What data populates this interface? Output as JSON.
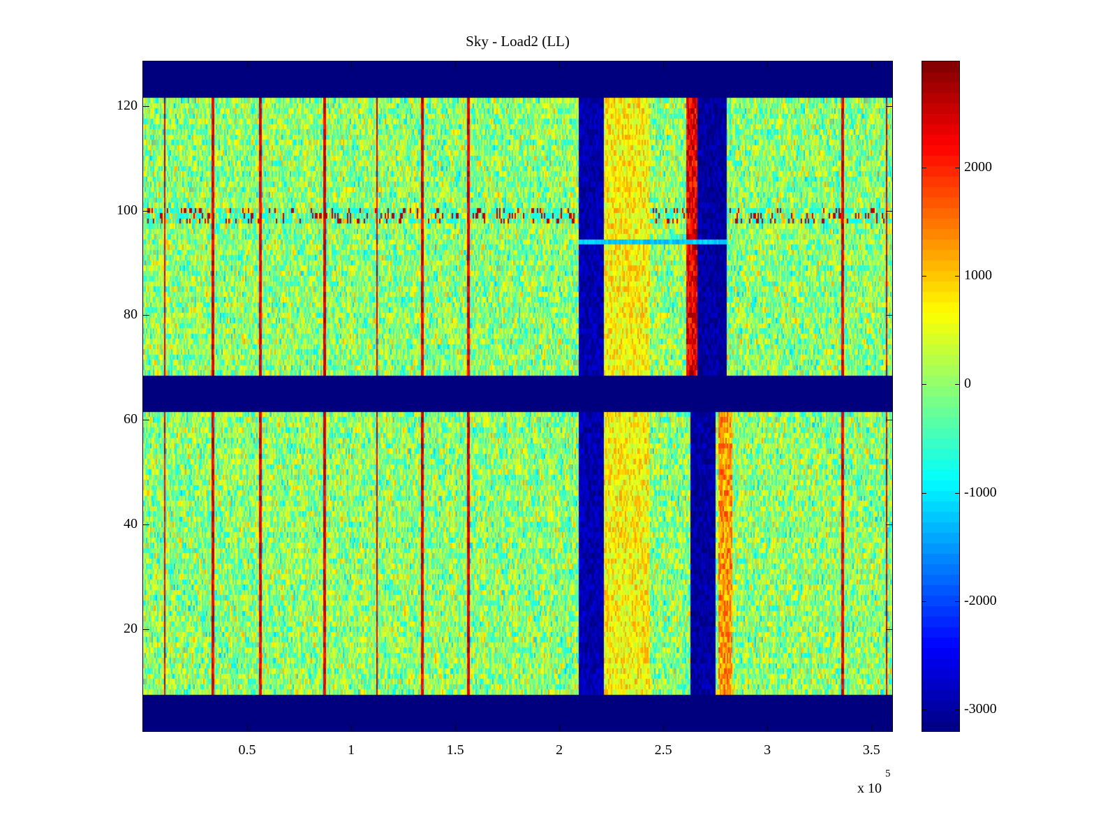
{
  "chart_data": {
    "type": "heatmap",
    "title": "Sky - Load2 (LL)",
    "xlabel": "",
    "ylabel": "",
    "x_multiplier_label": "x 10",
    "x_multiplier_exponent": "5",
    "xlim": [
      0,
      3.6
    ],
    "ylim": [
      0.5,
      128.5
    ],
    "xticks": [
      0.5,
      1,
      1.5,
      2,
      2.5,
      3,
      3.5
    ],
    "xtick_labels": [
      "0.5",
      "1",
      "1.5",
      "2",
      "2.5",
      "3",
      "3.5"
    ],
    "yticks": [
      20,
      40,
      60,
      80,
      100,
      120
    ],
    "ytick_labels": [
      "20",
      "40",
      "60",
      "80",
      "100",
      "120"
    ],
    "rows": 128,
    "colormap": "jet",
    "clim": [
      -3200,
      2980
    ],
    "colorbar": {
      "location": "right",
      "ticks": [
        2000,
        1000,
        0,
        -1000,
        -2000,
        -3000
      ],
      "tick_labels": [
        "2000",
        "1000",
        "0",
        "-1000",
        "-2000",
        "-3000"
      ]
    },
    "background_mean": 0,
    "masked_rows": [
      [
        1,
        7
      ],
      [
        62,
        68
      ],
      [
        122,
        128
      ]
    ],
    "masked_value": -3200,
    "bands": [
      {
        "x": [
          2.09,
          2.21
        ],
        "rows": [
          8,
          121
        ],
        "value": -2900
      },
      {
        "x": [
          2.21,
          2.43
        ],
        "rows": [
          8,
          121
        ],
        "value": 700
      },
      {
        "x": [
          2.61,
          2.66
        ],
        "rows": [
          69,
          121
        ],
        "value": 2300
      },
      {
        "x": [
          2.66,
          2.8
        ],
        "rows": [
          69,
          121
        ],
        "value": -3000
      },
      {
        "x": [
          2.63,
          2.75
        ],
        "rows": [
          8,
          61
        ],
        "value": -3000
      },
      {
        "x": [
          2.76,
          2.83
        ],
        "rows": [
          8,
          61
        ],
        "value": 1300
      }
    ],
    "light_rows": [
      {
        "row": 94,
        "x": [
          2.09,
          2.8
        ],
        "value": -1200
      }
    ],
    "noisy_rows": [
      98,
      99,
      100
    ],
    "stripes_x": [
      0.1,
      0.33,
      0.56,
      0.87,
      1.12,
      1.34,
      1.56,
      3.36,
      3.57
    ],
    "stripe_value": 2400
  }
}
